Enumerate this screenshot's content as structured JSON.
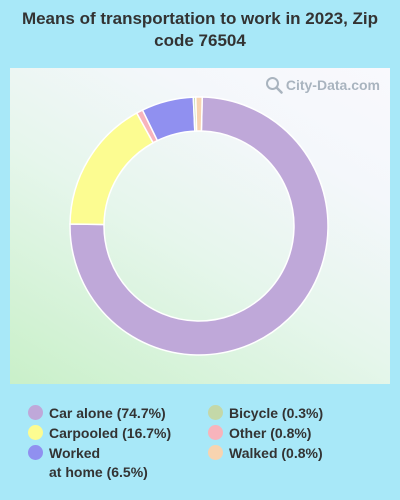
{
  "title": "Means of transportation to work in 2023, Zip code 76504",
  "watermark": "City-Data.com",
  "chart_data": {
    "type": "pie",
    "donut": true,
    "title": "Means of transportation to work in 2023, Zip code 76504",
    "legend_position": "bottom",
    "series": [
      {
        "name": "Car alone",
        "label": "Car alone (74.7%)",
        "value": 74.7,
        "color": "#bfa8d9"
      },
      {
        "name": "Carpooled",
        "label": "Carpooled (16.7%)",
        "value": 16.7,
        "color": "#fcfc91"
      },
      {
        "name": "Other",
        "label": "Other (0.8%)",
        "value": 0.8,
        "color": "#f8b4bc"
      },
      {
        "name": "Worked at home",
        "label": "Worked\nat home (6.5%)",
        "value": 6.5,
        "color": "#9090f0"
      },
      {
        "name": "Bicycle",
        "label": "Bicycle (0.3%)",
        "value": 0.3,
        "color": "#c4d8a8"
      },
      {
        "name": "Walked",
        "label": "Walked (0.8%)",
        "value": 0.8,
        "color": "#f8d4b0"
      }
    ]
  },
  "legend": [
    {
      "label": "Car alone (74.7%)",
      "color": "#bfa8d9"
    },
    {
      "label": "Carpooled (16.7%)",
      "color": "#fcfc91"
    },
    {
      "label": "Worked\nat home (6.5%)",
      "color": "#9090f0"
    },
    {
      "label": "Bicycle (0.3%)",
      "color": "#c4d8a8"
    },
    {
      "label": "Other (0.8%)",
      "color": "#f8b4bc"
    },
    {
      "label": "Walked (0.8%)",
      "color": "#f8d4b0"
    }
  ]
}
